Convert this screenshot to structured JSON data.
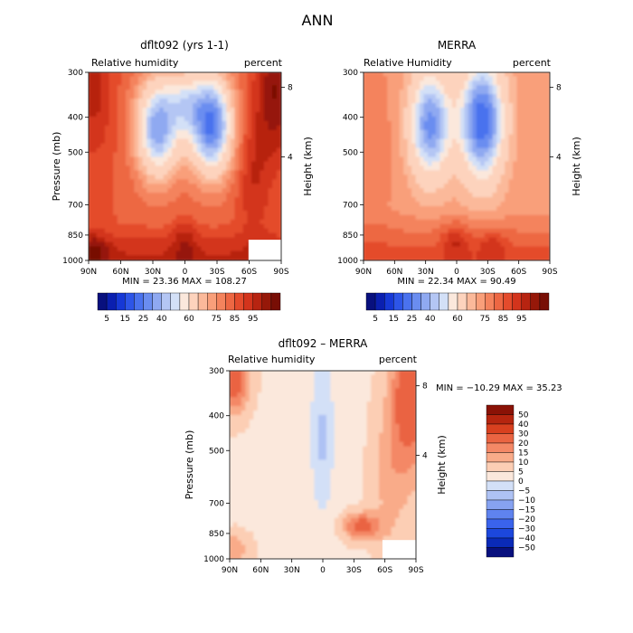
{
  "figure_title": "ANN",
  "chart_data": [
    {
      "type": "heatmap",
      "title": "dflt092 (yrs 1-1)",
      "subtitle_left": "Relative humidity",
      "subtitle_right": "percent",
      "xlabel": "",
      "ylabel": "Pressure (mb)",
      "ylabel_right": "Height (km)",
      "x_ticks": [
        "90N",
        "60N",
        "30N",
        "0",
        "30S",
        "60S",
        "90S"
      ],
      "y_ticks": [
        "300",
        "400",
        "500",
        "700",
        "850",
        "1000"
      ],
      "y_ticks_right": [
        "8",
        "4"
      ],
      "stats": "MIN =  23.36   MAX = 108.27",
      "colorbar_ticks": [
        "5",
        "15",
        "25",
        "40",
        "60",
        "75",
        "85",
        "95"
      ],
      "colorbar_levels": 20,
      "value_range": [
        5,
        100
      ]
    },
    {
      "type": "heatmap",
      "title": "MERRA",
      "subtitle_left": "Relative Humidity",
      "subtitle_right": "percent",
      "xlabel": "",
      "ylabel": "",
      "ylabel_right": "Height (km)",
      "x_ticks": [
        "90N",
        "60N",
        "30N",
        "0",
        "30S",
        "60S",
        "90S"
      ],
      "y_ticks": [
        "300",
        "400",
        "500",
        "700",
        "850",
        "1000"
      ],
      "y_ticks_right": [
        "8",
        "4"
      ],
      "stats": "MIN =  22.34   MAX =  90.49",
      "colorbar_ticks": [
        "5",
        "15",
        "25",
        "40",
        "60",
        "75",
        "85",
        "95"
      ],
      "colorbar_levels": 20,
      "value_range": [
        5,
        100
      ]
    },
    {
      "type": "heatmap",
      "title": "dflt092 – MERRA",
      "subtitle_left": "Relative humidity",
      "subtitle_right": "percent",
      "xlabel": "",
      "ylabel": "Pressure (mb)",
      "ylabel_right": "Height (km)",
      "x_ticks": [
        "90N",
        "60N",
        "30N",
        "0",
        "30S",
        "60S",
        "90S"
      ],
      "y_ticks": [
        "300",
        "400",
        "500",
        "700",
        "850",
        "1000"
      ],
      "y_ticks_right": [
        "8",
        "4"
      ],
      "stats": "MIN = −10.29   MAX =  35.23",
      "colorbar_ticks": [
        "50",
        "40",
        "30",
        "20",
        "15",
        "10",
        "5",
        "0",
        "−5",
        "−10",
        "−15",
        "−20",
        "−30",
        "−40",
        "−50"
      ],
      "colorbar_levels": 16,
      "value_range": [
        -55,
        55
      ]
    }
  ],
  "colors": {
    "rh_scale": [
      "#08107e",
      "#0a1fb0",
      "#1638d6",
      "#2d55e8",
      "#4a72ee",
      "#6a8df0",
      "#8fa9f1",
      "#b4c6f4",
      "#d3e0f7",
      "#fbe8dc",
      "#fdd3bd",
      "#fbb99a",
      "#f99f7a",
      "#f4835d",
      "#ed6743",
      "#e44b2c",
      "#d3341c",
      "#b72411",
      "#961809",
      "#780e05"
    ],
    "diff_scale": [
      "#08107e",
      "#0a2ab8",
      "#1c47dd",
      "#3a63ec",
      "#5f83ef",
      "#86a2f1",
      "#aec2f4",
      "#d3e0f7",
      "#fbe8dc",
      "#fcceb4",
      "#f9ab89",
      "#f48866",
      "#ea6442",
      "#d8401f",
      "#b5250f",
      "#8a1206"
    ]
  }
}
